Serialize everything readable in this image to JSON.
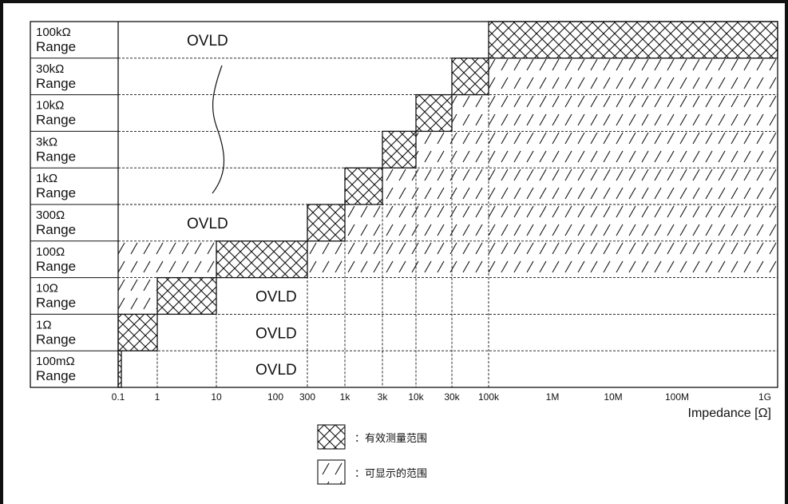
{
  "chart_data": {
    "type": "table",
    "xlabel": "Impedance [Ω]",
    "x_scale": "log",
    "xlim": [
      "0.1",
      "1G"
    ],
    "x_ticks": [
      "0.1",
      "1",
      "10",
      "100",
      "300",
      "1k",
      "3k",
      "10k",
      "30k",
      "100k",
      "1M",
      "10M",
      "100M",
      "1G"
    ],
    "ovld_text": "OVLD",
    "rows": [
      {
        "name_line1": "100kΩ",
        "name_line2": "Range",
        "segments": [
          {
            "type": "ovld",
            "from": "0.1",
            "to": "100k"
          },
          {
            "type": "effective",
            "from": "100k",
            "to": "1G"
          }
        ]
      },
      {
        "name_line1": "30kΩ",
        "name_line2": "Range",
        "segments": [
          {
            "type": "effective",
            "from": "30k",
            "to": "100k"
          },
          {
            "type": "display",
            "from": "100k",
            "to": "1G"
          }
        ]
      },
      {
        "name_line1": "10kΩ",
        "name_line2": "Range",
        "segments": [
          {
            "type": "effective",
            "from": "10k",
            "to": "30k"
          },
          {
            "type": "display",
            "from": "30k",
            "to": "1G"
          }
        ]
      },
      {
        "name_line1": "3kΩ",
        "name_line2": "Range",
        "segments": [
          {
            "type": "effective",
            "from": "3k",
            "to": "10k"
          },
          {
            "type": "display",
            "from": "10k",
            "to": "1G"
          }
        ]
      },
      {
        "name_line1": "1kΩ",
        "name_line2": "Range",
        "segments": [
          {
            "type": "effective",
            "from": "1k",
            "to": "3k"
          },
          {
            "type": "display",
            "from": "3k",
            "to": "1G"
          }
        ]
      },
      {
        "name_line1": "300Ω",
        "name_line2": "Range",
        "segments": [
          {
            "type": "ovld",
            "from": "0.1",
            "to": "300"
          },
          {
            "type": "effective",
            "from": "300",
            "to": "1k"
          },
          {
            "type": "display",
            "from": "1k",
            "to": "1G"
          }
        ]
      },
      {
        "name_line1": "100Ω",
        "name_line2": "Range",
        "segments": [
          {
            "type": "display",
            "from": "0.1",
            "to": "10"
          },
          {
            "type": "effective",
            "from": "10",
            "to": "300"
          },
          {
            "type": "display",
            "from": "300",
            "to": "1G"
          }
        ]
      },
      {
        "name_line1": "10Ω",
        "name_line2": "Range",
        "segments": [
          {
            "type": "display",
            "from": "0.1",
            "to": "1"
          },
          {
            "type": "effective",
            "from": "1",
            "to": "10"
          },
          {
            "type": "ovld",
            "from": "10",
            "to": "300"
          }
        ]
      },
      {
        "name_line1": "1Ω",
        "name_line2": "Range",
        "segments": [
          {
            "type": "effective",
            "from": "0.1",
            "to": "1"
          },
          {
            "type": "ovld",
            "from": "10",
            "to": "300"
          }
        ]
      },
      {
        "name_line1": "100mΩ",
        "name_line2": "Range",
        "segments": [
          {
            "type": "effective",
            "from": "0.1",
            "to": "0.1"
          },
          {
            "type": "ovld",
            "from": "10",
            "to": "300"
          }
        ]
      }
    ],
    "legend": [
      {
        "type": "effective",
        "label": "：有效测量范围"
      },
      {
        "type": "display",
        "label": "：可显示的范围"
      }
    ]
  }
}
